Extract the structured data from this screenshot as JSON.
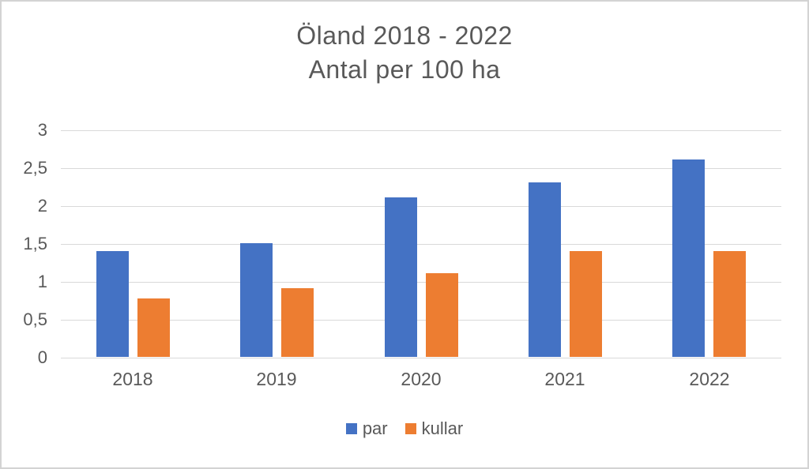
{
  "title": {
    "line1": "Öland 2018 - 2022",
    "line2": "Antal per 100 ha"
  },
  "colors": {
    "series_par": "#4472C4",
    "series_kullar": "#ED7D31",
    "gridline": "#D9D9D9",
    "axis_text": "#595959",
    "title_text": "#595959",
    "canvas_border": "#D3D3D3",
    "background": "#FFFFFF"
  },
  "chart_data": {
    "type": "bar",
    "title": "Öland 2018 - 2022\nAntal per 100 ha",
    "categories": [
      "2018",
      "2019",
      "2020",
      "2021",
      "2022"
    ],
    "series": [
      {
        "name": "par",
        "color": "#4472C4",
        "values": [
          1.4,
          1.5,
          2.1,
          2.3,
          2.6
        ]
      },
      {
        "name": "kullar",
        "color": "#ED7D31",
        "values": [
          0.77,
          0.91,
          1.1,
          1.4,
          1.4
        ]
      }
    ],
    "xlabel": "",
    "ylabel": "",
    "ylim": [
      0,
      3
    ],
    "ytick_step": 0.5,
    "ytick_labels": [
      "0",
      "0,5",
      "1",
      "1,5",
      "2",
      "2,5",
      "3"
    ],
    "decimal_separator": ",",
    "grid": true,
    "legend_position": "bottom"
  }
}
